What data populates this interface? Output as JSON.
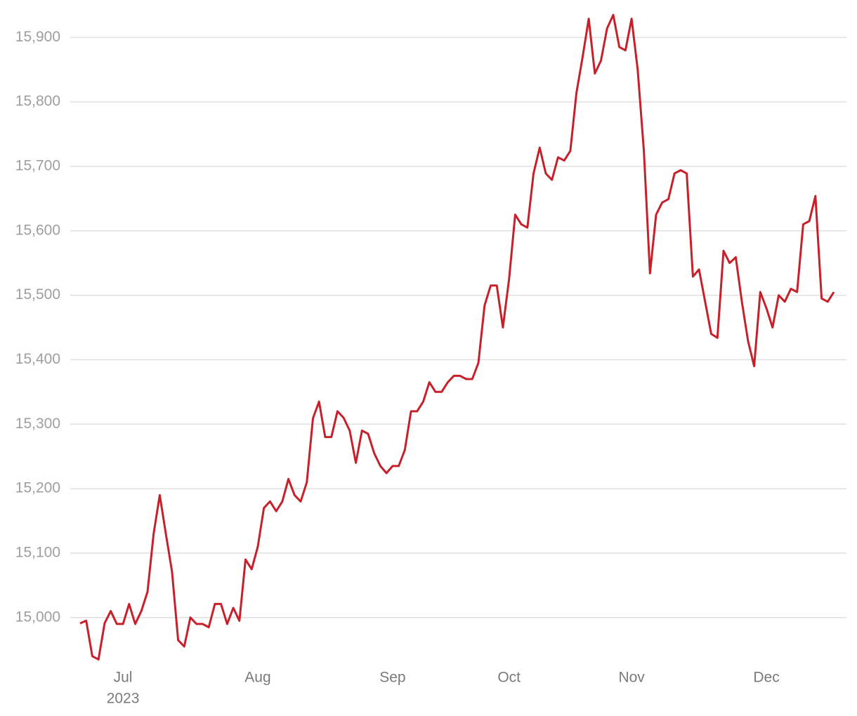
{
  "chart_data": {
    "type": "line",
    "categories": [
      null,
      null,
      null,
      null,
      null,
      null,
      null,
      "Jul",
      null,
      null,
      null,
      null,
      null,
      null,
      null,
      null,
      null,
      null,
      null,
      null,
      null,
      null,
      null,
      null,
      null,
      null,
      null,
      null,
      null,
      "Aug",
      null,
      null,
      null,
      null,
      null,
      null,
      null,
      null,
      null,
      null,
      null,
      null,
      null,
      null,
      null,
      null,
      null,
      null,
      null,
      null,
      null,
      "Sep",
      null,
      null,
      null,
      null,
      null,
      null,
      null,
      null,
      null,
      null,
      null,
      null,
      null,
      null,
      null,
      null,
      null,
      null,
      "Oct",
      null,
      null,
      null,
      null,
      null,
      null,
      null,
      null,
      null,
      null,
      null,
      null,
      null,
      null,
      null,
      null,
      null,
      null,
      null,
      "Nov",
      null,
      null,
      null,
      null,
      null,
      null,
      null,
      null,
      null,
      null,
      null,
      null,
      null,
      null,
      null,
      null,
      null,
      null,
      null,
      null,
      null,
      "Dec",
      null,
      null,
      null,
      null,
      null,
      null,
      null,
      null,
      null,
      null,
      null
    ],
    "year_label": "2023",
    "series": [
      {
        "color": "#c8202a",
        "values": [
          14991,
          14995,
          14940,
          14935,
          14991,
          15010,
          14990,
          14990,
          15021,
          14990,
          15010,
          15040,
          15130,
          15190,
          15130,
          15071,
          14965,
          14955,
          15000,
          14990,
          14990,
          14985,
          15021,
          15021,
          14990,
          15015,
          14995,
          15090,
          15075,
          15110,
          15170,
          15180,
          15165,
          15180,
          15215,
          15190,
          15180,
          15210,
          15309,
          15335,
          15280,
          15280,
          15320,
          15310,
          15290,
          15240,
          15290,
          15285,
          15255,
          15235,
          15224,
          15235,
          15235,
          15260,
          15320,
          15320,
          15335,
          15365,
          15350,
          15350,
          15365,
          15375,
          15375,
          15370,
          15370,
          15395,
          15484,
          15515,
          15515,
          15450,
          15525,
          15625,
          15610,
          15605,
          15689,
          15729,
          15689,
          15679,
          15714,
          15709,
          15724,
          15814,
          15869,
          15929,
          15844,
          15864,
          15914,
          15935,
          15885,
          15880,
          15929,
          15850,
          15724,
          15534,
          15625,
          15644,
          15649,
          15689,
          15694,
          15689,
          15529,
          15540,
          15490,
          15440,
          15434,
          15569,
          15550,
          15559,
          15490,
          15429,
          15390,
          15505,
          15480,
          15450,
          15500,
          15490,
          15510,
          15505,
          15610,
          15615,
          15654,
          15495,
          15490,
          15505
        ]
      }
    ],
    "ylim": [
      14930,
      15945
    ],
    "yticks": [
      {
        "value": 15000,
        "label": "15,000"
      },
      {
        "value": 15100,
        "label": "15,100"
      },
      {
        "value": 15200,
        "label": "15,200"
      },
      {
        "value": 15300,
        "label": "15,300"
      },
      {
        "value": 15400,
        "label": "15,400"
      },
      {
        "value": 15500,
        "label": "15,500"
      },
      {
        "value": 15600,
        "label": "15,600"
      },
      {
        "value": 15700,
        "label": "15,700"
      },
      {
        "value": 15800,
        "label": "15,800"
      },
      {
        "value": 15900,
        "label": "15,900"
      }
    ],
    "grid": true
  }
}
